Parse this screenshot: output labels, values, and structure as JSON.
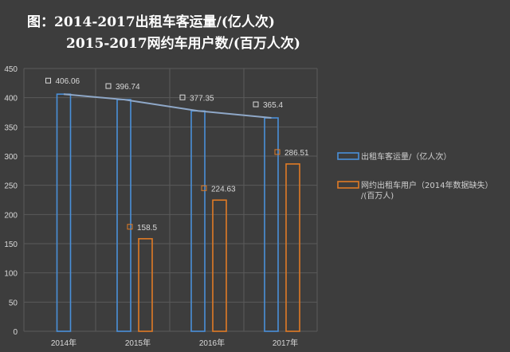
{
  "title_line1": "图：2014-2017出租车客运量/(亿人次)",
  "title_line2": "2015-2017网约车用户数/(百万人次)",
  "colors": {
    "background": "#3d3d3d",
    "taxi": "#4a90d9",
    "ride": "#e07b25",
    "grid": "#5a5a5a"
  },
  "chart_data": {
    "type": "bar",
    "categories": [
      "2014年",
      "2015年",
      "2016年",
      "2017年"
    ],
    "ylim": [
      0,
      450
    ],
    "yticks": [
      0,
      50,
      100,
      150,
      200,
      250,
      300,
      350,
      400,
      450
    ],
    "grid": true,
    "legend_position": "right",
    "series": [
      {
        "name": "出租车客运量/（亿人次）",
        "values": [
          406.06,
          396.74,
          377.35,
          365.4
        ],
        "labels": [
          "406.06",
          "396.74",
          "377.35",
          "365.4"
        ]
      },
      {
        "name": "网约出租车用户（2014年数据缺失）/(百万人)",
        "values": [
          null,
          158.5,
          224.63,
          286.51
        ],
        "labels": [
          null,
          "158.5",
          "224.63",
          "286.51"
        ]
      }
    ],
    "trendline_series": 0
  },
  "legend": {
    "taxi_label": "出租车客运量/（亿人次）",
    "ride_label_line1": "网约出租车用户（2014年数据缺失）",
    "ride_label_line2": "/(百万人)"
  }
}
